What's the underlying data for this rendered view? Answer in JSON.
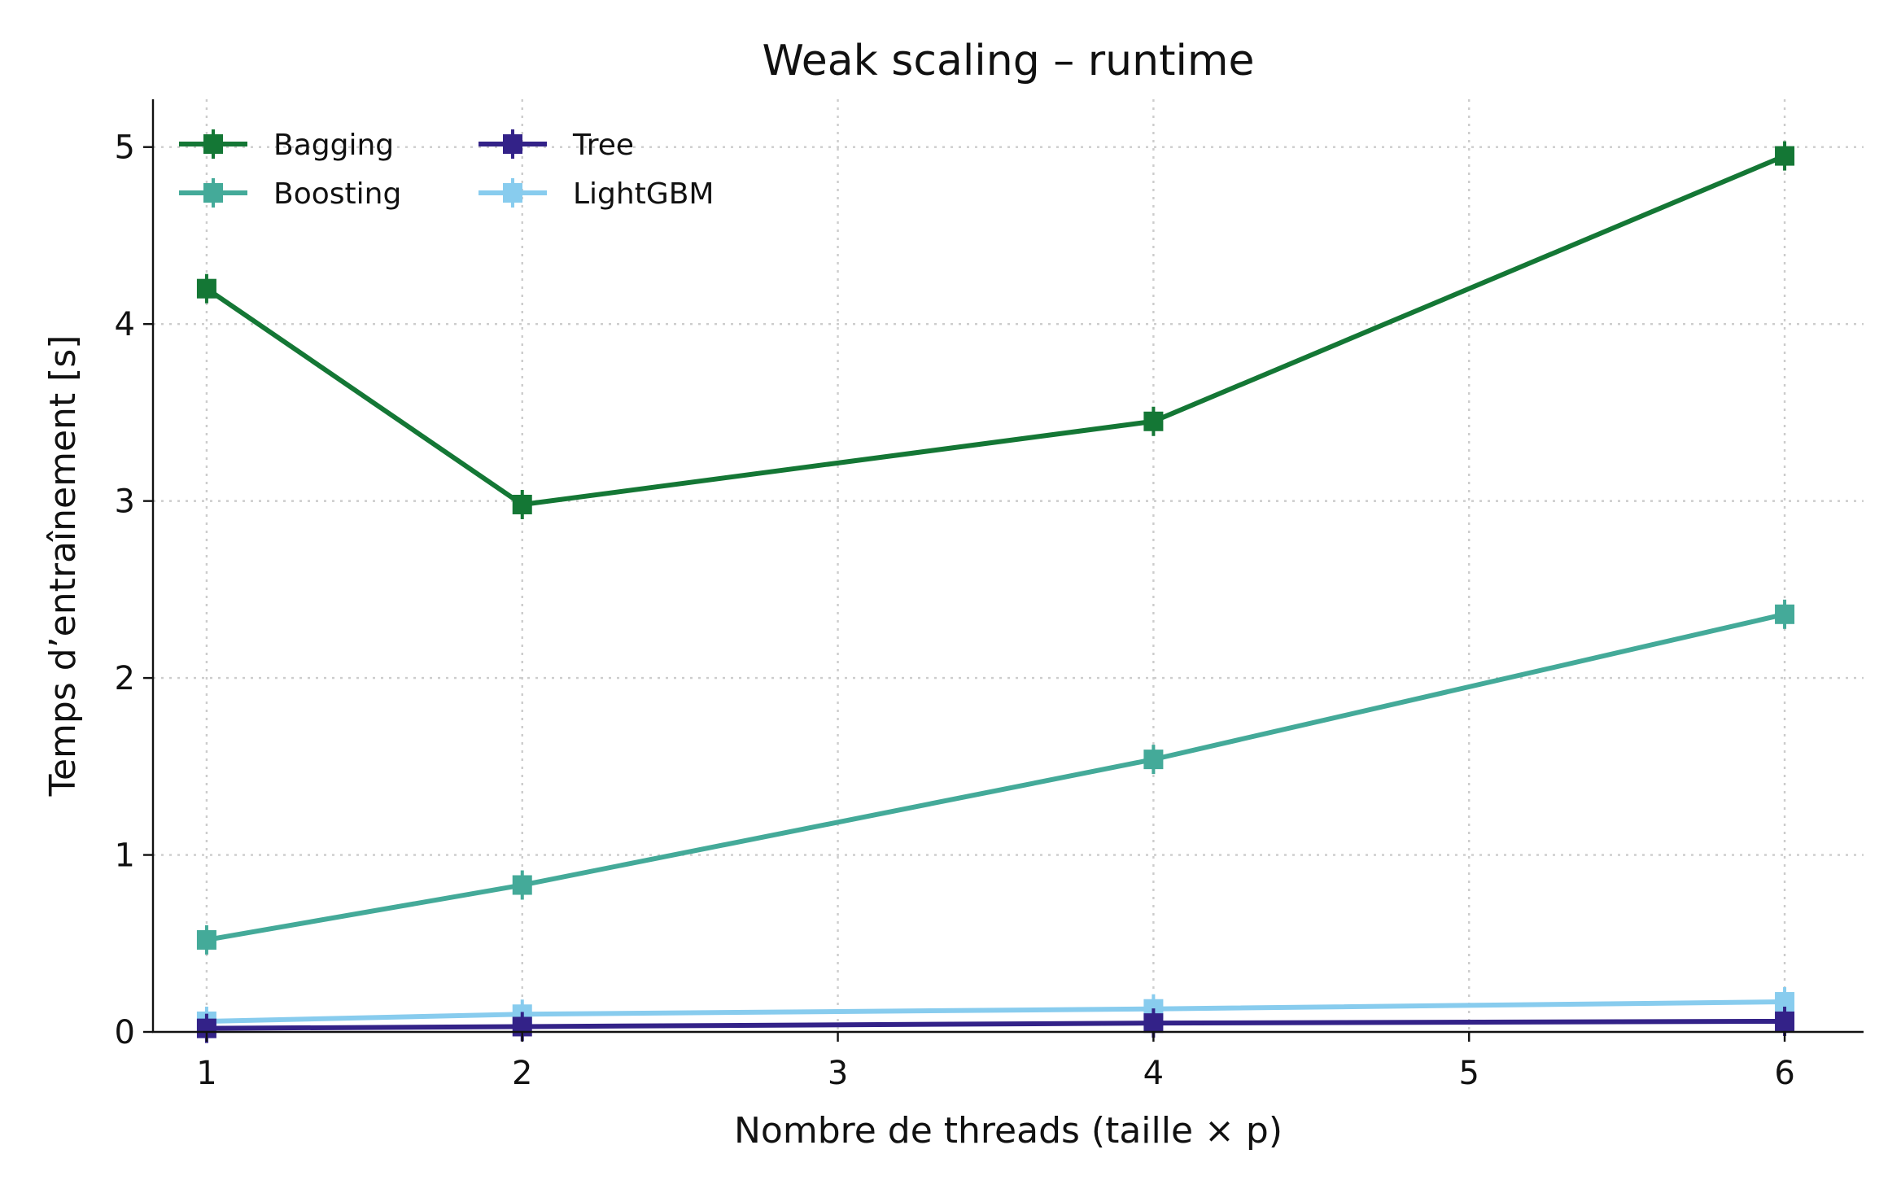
{
  "chart_data": {
    "type": "line",
    "title": "Weak scaling – runtime",
    "xlabel": "Nombre de threads  (taille × p)",
    "ylabel": "Temps d’entraînement [s]",
    "x": [
      1,
      2,
      4,
      6
    ],
    "xlim": [
      0.83,
      6.25
    ],
    "ylim": [
      0,
      5.27
    ],
    "xticks": [
      1,
      2,
      3,
      4,
      5,
      6
    ],
    "yticks": [
      0,
      1,
      2,
      3,
      4,
      5
    ],
    "grid": true,
    "legend_placement": "top-left",
    "legend_columns": 2,
    "marker": "square",
    "series": [
      {
        "name": "Bagging",
        "color": "#147735",
        "values": [
          4.2,
          2.98,
          3.45,
          4.95
        ]
      },
      {
        "name": "Boosting",
        "color": "#44AA99",
        "values": [
          0.52,
          0.83,
          1.54,
          2.36
        ]
      },
      {
        "name": "Tree",
        "color": "#332288",
        "values": [
          0.02,
          0.03,
          0.05,
          0.06
        ]
      },
      {
        "name": "LightGBM",
        "color": "#88CCEE",
        "values": [
          0.06,
          0.1,
          0.13,
          0.17
        ]
      }
    ]
  }
}
